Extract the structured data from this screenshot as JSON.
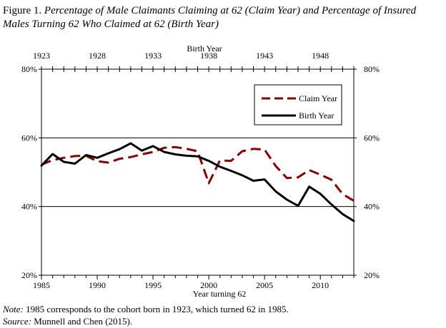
{
  "title": {
    "prefix": "Figure 1.",
    "text": "Percentage of Male Claimants Claiming at 62 (Claim Year) and Percentage of Insured Males Turning 62 Who Claimed at 62 (Birth Year)"
  },
  "notes": {
    "note_label": "Note:",
    "note_text": "1985 corresponds to the cohort born in 1923, which turned 62 in 1985.",
    "source_label": "Source:",
    "source_text": "Munnell and Chen (2015)."
  },
  "chart_data": {
    "type": "line",
    "xlabel": "Year turning 62",
    "top_xlabel": "Birth Year",
    "x_range": [
      1985,
      2013
    ],
    "ylim": [
      20,
      80
    ],
    "y_ticks": [
      20,
      40,
      60,
      80
    ],
    "y_tick_labels": [
      "20%",
      "40%",
      "60%",
      "80%"
    ],
    "x_ticks": [
      1985,
      1990,
      1995,
      2000,
      2005,
      2010
    ],
    "top_x_ticks": [
      1923,
      1928,
      1933,
      1938,
      1943,
      1948
    ],
    "grid": "horizontal",
    "legend_position": "top-right",
    "series": [
      {
        "name": "Claim Year",
        "color": "#8b0000",
        "style": "dashed",
        "x": [
          1985,
          1986,
          1987,
          1988,
          1989,
          1990,
          1991,
          1992,
          1993,
          1994,
          1995,
          1996,
          1997,
          1998,
          1999,
          2000,
          2001,
          2002,
          2003,
          2004,
          2005,
          2006,
          2007,
          2008,
          2009,
          2010,
          2011,
          2012,
          2013
        ],
        "values": [
          52.2,
          53.5,
          54.2,
          54.7,
          54.8,
          53.2,
          52.8,
          53.9,
          54.4,
          55.2,
          55.9,
          57.1,
          57.3,
          56.8,
          56.1,
          46.8,
          53.4,
          53.3,
          56.1,
          56.8,
          56.6,
          51.8,
          48.3,
          48.5,
          50.6,
          49.3,
          47.8,
          43.6,
          41.7
        ]
      },
      {
        "name": "Birth Year",
        "color": "#000000",
        "style": "solid",
        "x": [
          1985,
          1986,
          1987,
          1988,
          1989,
          1990,
          1991,
          1992,
          1993,
          1994,
          1995,
          1996,
          1997,
          1998,
          1999,
          2000,
          2001,
          2002,
          2003,
          2004,
          2005,
          2006,
          2007,
          2008,
          2009,
          2010,
          2011,
          2012,
          2013
        ],
        "values": [
          51.9,
          55.3,
          53.0,
          52.5,
          55.0,
          54.2,
          55.5,
          56.7,
          58.4,
          56.3,
          57.6,
          55.9,
          55.2,
          54.8,
          54.6,
          53.3,
          51.6,
          50.4,
          49.1,
          47.5,
          47.9,
          44.4,
          42.0,
          40.2,
          45.8,
          43.7,
          40.6,
          37.8,
          35.8
        ]
      }
    ]
  }
}
